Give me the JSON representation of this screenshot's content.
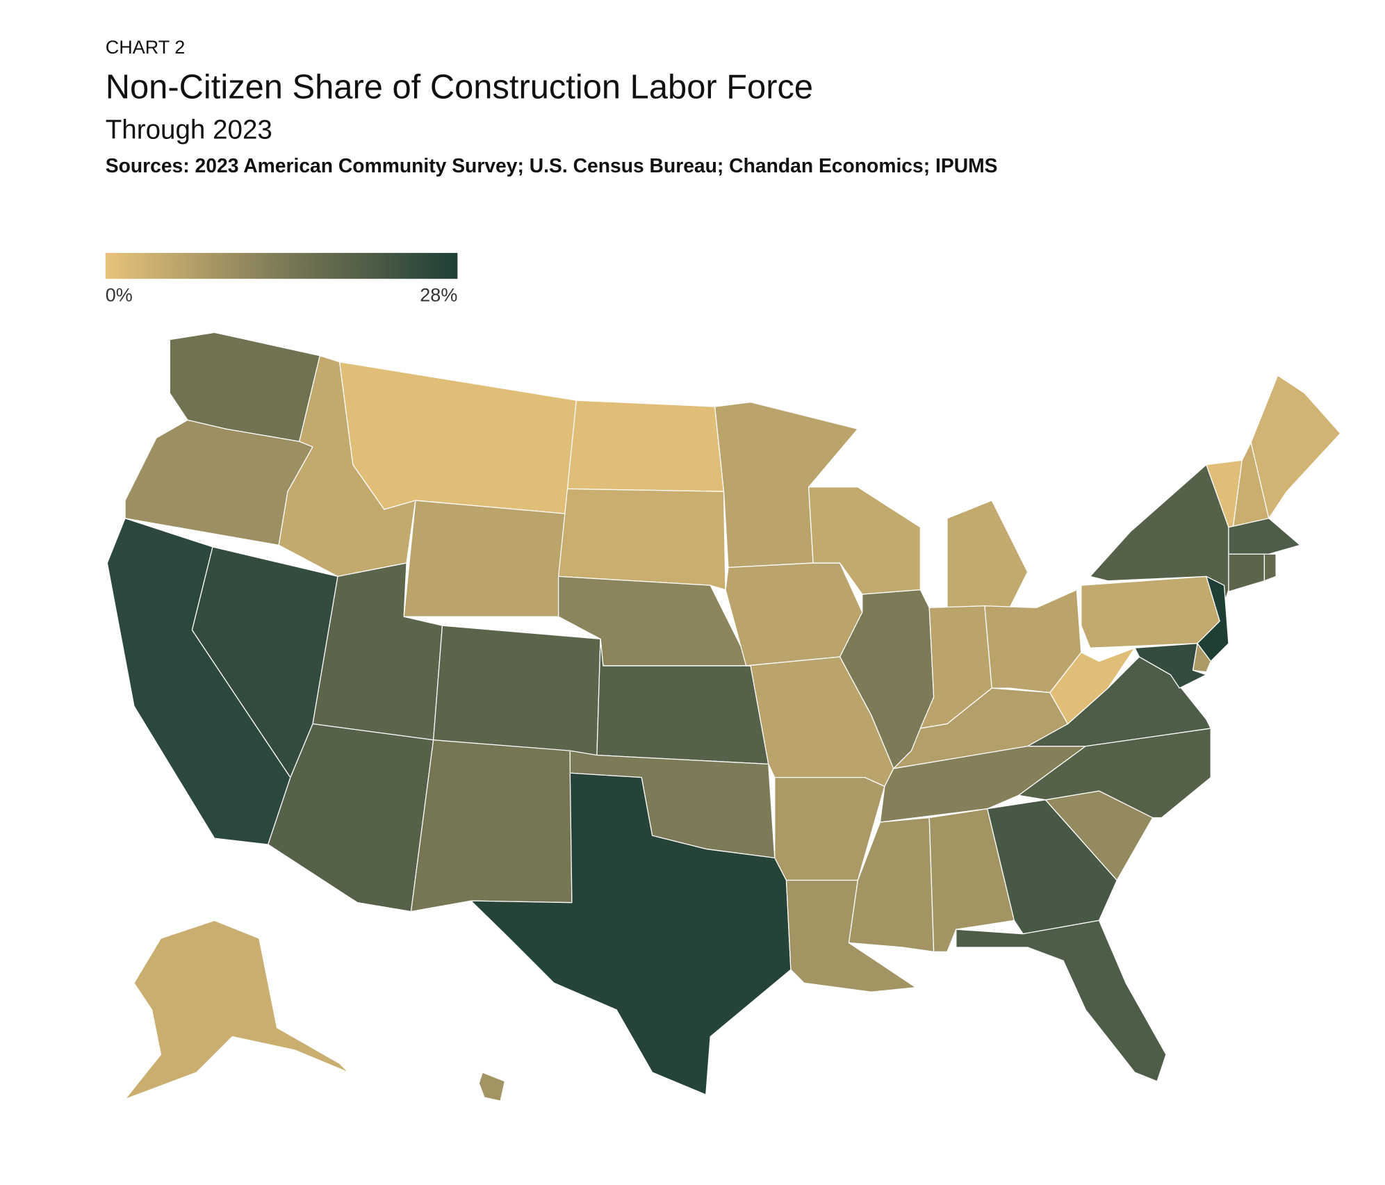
{
  "chart_data": {
    "type": "choropleth",
    "label": "CHART 2",
    "title": "Non-Citizen Share of Construction Labor Force",
    "subtitle": "Through 2023",
    "source": "Sources: 2023 American Community Survey; U.S. Census Bureau; Chandan Economics; IPUMS",
    "values": [
      16,
      10,
      26,
      25,
      5,
      1,
      6,
      19,
      19,
      20,
      15,
      1,
      4,
      12,
      20,
      14,
      27,
      6,
      6,
      6,
      8,
      9,
      5,
      14,
      5,
      6,
      6,
      7,
      13,
      9,
      9,
      22,
      21,
      11,
      20,
      21,
      1,
      5,
      20,
      28,
      8,
      25,
      1,
      4,
      3,
      21,
      19,
      18,
      4,
      9
    ],
    "colorlim": [
      0,
      28
    ],
    "colorticks": [
      {
        "value": 0,
        "label": "0%"
      },
      {
        "value": 28,
        "label": "28%"
      }
    ],
    "colors": [
      "#e8c37a",
      "#7d7a57",
      "#1f3f36"
    ]
  }
}
